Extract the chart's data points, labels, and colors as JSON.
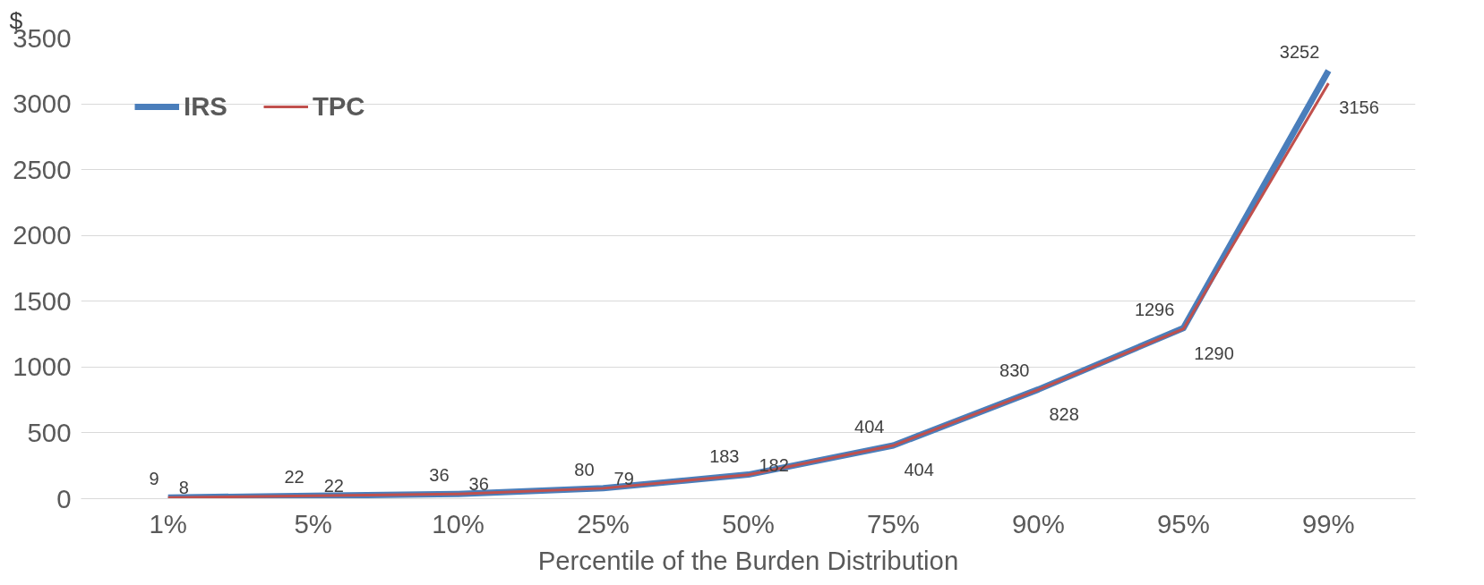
{
  "chart_data": {
    "type": "line",
    "xlabel": "Percentile of the Burden Distribution",
    "ylabel": "$",
    "categories": [
      "1%",
      "5%",
      "10%",
      "25%",
      "50%",
      "75%",
      "90%",
      "95%",
      "99%"
    ],
    "series": [
      {
        "name": "IRS",
        "color": "#4a7ebb",
        "values": [
          9,
          22,
          36,
          80,
          183,
          404,
          830,
          1296,
          3252
        ]
      },
      {
        "name": "TPC",
        "color": "#c0504d",
        "values": [
          8,
          22,
          36,
          79,
          182,
          404,
          828,
          1290,
          3156
        ]
      }
    ],
    "ylim": [
      0,
      3500
    ],
    "yticks": [
      0,
      500,
      1000,
      1500,
      2000,
      2500,
      3000,
      3500
    ],
    "grid": "y",
    "legend": "top left",
    "data_labels": true,
    "marker": "none",
    "line_style": "solid"
  }
}
